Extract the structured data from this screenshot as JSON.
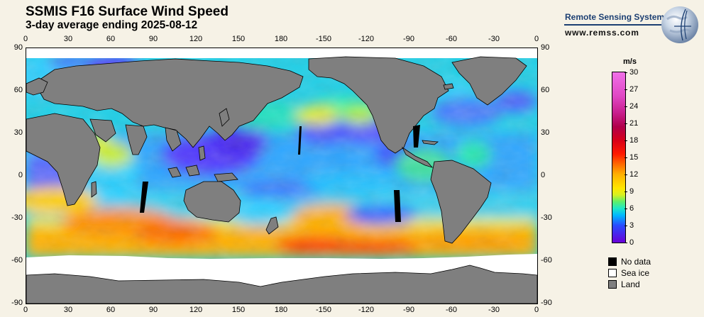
{
  "header": {
    "title": "SSMIS F16 Surface Wind Speed",
    "subtitle": "3-day average ending 2025-08-12"
  },
  "brand": {
    "name": "Remote Sensing Systems",
    "url": "www.remss.com"
  },
  "axes": {
    "lon_ticks": [
      "0",
      "30",
      "60",
      "90",
      "120",
      "150",
      "180",
      "-150",
      "-120",
      "-90",
      "-60",
      "-30",
      "0"
    ],
    "lat_ticks": [
      "90",
      "60",
      "30",
      "0",
      "-30",
      "-60",
      "-90"
    ]
  },
  "colorbar": {
    "unit": "m/s",
    "labels": [
      "30",
      "27",
      "24",
      "21",
      "18",
      "15",
      "12",
      "9",
      "6",
      "3",
      "0"
    ],
    "range": [
      0,
      30
    ]
  },
  "legend": [
    {
      "label": "No data",
      "color": "#000000"
    },
    {
      "label": "Sea ice",
      "color": "#ffffff"
    },
    {
      "label": "Land",
      "color": "#7f7f7f"
    }
  ],
  "colors": {
    "background": "#f6f2e6",
    "land": "#7f7f7f",
    "sea_ice": "#ffffff",
    "no_data": "#000000",
    "brand": "#1c3f72"
  },
  "map": {
    "projection": "equirectangular",
    "lon_range": [
      0,
      360
    ],
    "lat_range": [
      -90,
      90
    ]
  }
}
